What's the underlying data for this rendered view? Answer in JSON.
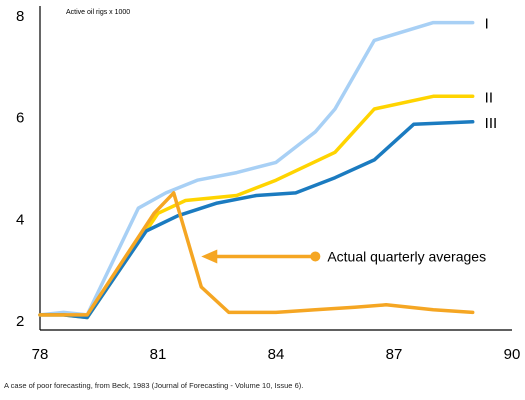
{
  "caption": "A case of poor forecasting, from Beck, 1983 (Journal of Forecasting - Volume 10, Issue 6).",
  "colors": {
    "series_I": "#a8d0f5",
    "series_II": "#ffd400",
    "series_III": "#1b7bc0",
    "actual": "#f5a623",
    "axis": "#000000"
  },
  "chart_data": {
    "type": "line",
    "ylabel": "Active oil rigs x 1000",
    "xlim": [
      78,
      90
    ],
    "ylim": [
      2,
      8
    ],
    "x_ticks": [
      "78",
      "81",
      "84",
      "87",
      "90"
    ],
    "y_ticks": [
      "2",
      "4",
      "6",
      "8"
    ],
    "grid": false,
    "series": [
      {
        "name": "I",
        "points": [
          [
            78,
            2.1
          ],
          [
            78.6,
            2.15
          ],
          [
            79.2,
            2.1
          ],
          [
            80.5,
            4.2
          ],
          [
            81.2,
            4.5
          ],
          [
            82,
            4.75
          ],
          [
            83,
            4.9
          ],
          [
            84,
            5.1
          ],
          [
            85,
            5.7
          ],
          [
            85.5,
            6.15
          ],
          [
            86.5,
            7.5
          ],
          [
            88,
            7.85
          ],
          [
            89,
            7.85
          ]
        ]
      },
      {
        "name": "II",
        "points": [
          [
            78,
            2.1
          ],
          [
            78.6,
            2.1
          ],
          [
            79.2,
            2.05
          ],
          [
            81,
            4.1
          ],
          [
            81.7,
            4.35
          ],
          [
            83,
            4.45
          ],
          [
            84,
            4.75
          ],
          [
            85.5,
            5.3
          ],
          [
            86.5,
            6.15
          ],
          [
            88,
            6.4
          ],
          [
            89,
            6.4
          ]
        ]
      },
      {
        "name": "III",
        "points": [
          [
            78,
            2.1
          ],
          [
            78.6,
            2.1
          ],
          [
            79.2,
            2.05
          ],
          [
            80.7,
            3.75
          ],
          [
            81.5,
            4.05
          ],
          [
            82.5,
            4.3
          ],
          [
            83.5,
            4.45
          ],
          [
            84.5,
            4.5
          ],
          [
            85.5,
            4.8
          ],
          [
            86.5,
            5.15
          ],
          [
            87.5,
            5.85
          ],
          [
            89,
            5.9
          ]
        ]
      },
      {
        "name": "Actual quarterly averages",
        "points": [
          [
            78,
            2.1
          ],
          [
            78.6,
            2.1
          ],
          [
            79.2,
            2.1
          ],
          [
            80.9,
            4.1
          ],
          [
            81.4,
            4.5
          ],
          [
            82.1,
            2.65
          ],
          [
            82.8,
            2.15
          ],
          [
            83.5,
            2.15
          ],
          [
            84,
            2.15
          ],
          [
            85,
            2.2
          ],
          [
            86,
            2.25
          ],
          [
            86.8,
            2.3
          ],
          [
            88,
            2.2
          ],
          [
            89,
            2.15
          ]
        ]
      }
    ],
    "annotation": {
      "text": "Actual quarterly averages",
      "arrow_from": [
        85.0,
        3.25
      ],
      "arrow_to": [
        82.1,
        3.25
      ]
    }
  }
}
